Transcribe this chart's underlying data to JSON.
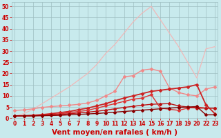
{
  "xlabel": "Vent moyen/en rafales ( km/h )",
  "ylabel": "",
  "background_color": "#c8eaed",
  "grid_color": "#9fbfc2",
  "x_ticks_pos": [
    0,
    1,
    2,
    3,
    4,
    5,
    6,
    7,
    8,
    9,
    10,
    11,
    12,
    13,
    14,
    15,
    16,
    17,
    18,
    19,
    20,
    21,
    22
  ],
  "x_labels": [
    "0",
    "1",
    "2",
    "3",
    "4",
    "5",
    "6",
    "7",
    "8",
    "9",
    "10",
    "11",
    "12",
    "13",
    "14",
    "15",
    "16",
    "17",
    "18",
    "19",
    "20",
    "22",
    "23"
  ],
  "ylim": [
    0,
    52
  ],
  "y_ticks": [
    0,
    5,
    10,
    15,
    20,
    25,
    30,
    35,
    40,
    45,
    50
  ],
  "series": [
    {
      "xi": [
        0,
        1,
        2,
        3,
        4,
        5,
        6,
        7,
        8,
        9,
        10,
        11,
        12,
        13,
        14,
        15,
        16,
        17,
        18,
        19,
        20,
        21,
        22
      ],
      "y": [
        1.0,
        2.0,
        4.0,
        6.5,
        9.0,
        11.5,
        14.0,
        17.0,
        20.0,
        24.0,
        29.0,
        33.0,
        38.0,
        43.0,
        47.0,
        50.0,
        44.0,
        38.0,
        32.0,
        25.0,
        18.0,
        31.0,
        32.0
      ],
      "color": "#f0b8b8",
      "linewidth": 0.9,
      "marker": null,
      "markersize": 0
    },
    {
      "xi": [
        0,
        1,
        2,
        3,
        4,
        5,
        6,
        7,
        8,
        9,
        10,
        11,
        12,
        13,
        14,
        15,
        16,
        17,
        18,
        19,
        20,
        21,
        22
      ],
      "y": [
        3.5,
        3.7,
        4.2,
        4.8,
        5.2,
        5.5,
        5.8,
        6.2,
        6.8,
        8.0,
        10.0,
        12.0,
        18.5,
        19.0,
        21.5,
        22.0,
        21.0,
        13.5,
        11.5,
        10.5,
        10.0,
        13.0,
        14.0
      ],
      "color": "#f08888",
      "linewidth": 1.0,
      "marker": "D",
      "markersize": 2.0
    },
    {
      "xi": [
        0,
        1,
        2,
        3,
        4,
        5,
        6,
        7,
        8,
        9,
        10,
        11,
        12,
        13,
        14,
        15,
        16,
        17,
        18,
        19,
        20,
        21,
        22
      ],
      "y": [
        1.0,
        1.1,
        1.3,
        1.6,
        2.0,
        2.5,
        3.0,
        3.8,
        4.5,
        5.5,
        6.5,
        7.8,
        9.0,
        10.0,
        11.0,
        12.0,
        12.5,
        13.0,
        13.5,
        14.0,
        15.0,
        6.0,
        2.0
      ],
      "color": "#cc2222",
      "linewidth": 1.3,
      "marker": "D",
      "markersize": 2.0
    },
    {
      "xi": [
        0,
        1,
        2,
        3,
        4,
        5,
        6,
        7,
        8,
        9,
        10,
        11,
        12,
        13,
        14,
        15,
        16,
        17,
        18,
        19,
        20,
        21,
        22
      ],
      "y": [
        1.0,
        1.0,
        1.2,
        1.4,
        1.7,
        2.0,
        2.5,
        3.0,
        3.5,
        4.5,
        5.5,
        6.5,
        7.5,
        8.5,
        9.0,
        10.5,
        4.5,
        4.0,
        3.5,
        4.5,
        5.0,
        4.5,
        4.5
      ],
      "color": "#dd3333",
      "linewidth": 1.0,
      "marker": "D",
      "markersize": 2.0
    },
    {
      "xi": [
        0,
        1,
        2,
        3,
        4,
        5,
        6,
        7,
        8,
        9,
        10,
        11,
        12,
        13,
        14,
        15,
        16,
        17,
        18,
        19,
        20,
        21,
        22
      ],
      "y": [
        1.0,
        1.0,
        1.1,
        1.3,
        1.5,
        1.7,
        2.0,
        2.3,
        2.7,
        3.1,
        3.6,
        4.2,
        4.8,
        5.3,
        5.8,
        6.2,
        6.4,
        6.5,
        5.5,
        5.0,
        4.5,
        4.5,
        4.5
      ],
      "color": "#bb1111",
      "linewidth": 1.0,
      "marker": "D",
      "markersize": 2.0
    },
    {
      "xi": [
        0,
        1,
        2,
        3,
        4,
        5,
        6,
        7,
        8,
        9,
        10,
        11,
        12,
        13,
        14,
        15,
        16,
        17,
        18,
        19,
        20,
        21,
        22
      ],
      "y": [
        1.0,
        1.0,
        1.0,
        1.1,
        1.2,
        1.3,
        1.5,
        1.7,
        1.9,
        2.1,
        2.4,
        2.7,
        3.0,
        3.3,
        3.6,
        3.9,
        4.2,
        4.5,
        4.8,
        5.0,
        5.2,
        1.5,
        1.5
      ],
      "color": "#880000",
      "linewidth": 1.0,
      "marker": "D",
      "markersize": 2.0
    }
  ],
  "tick_color": "#cc0000",
  "label_color": "#cc0000",
  "tick_fontsize": 5.5,
  "label_fontsize": 7.5
}
